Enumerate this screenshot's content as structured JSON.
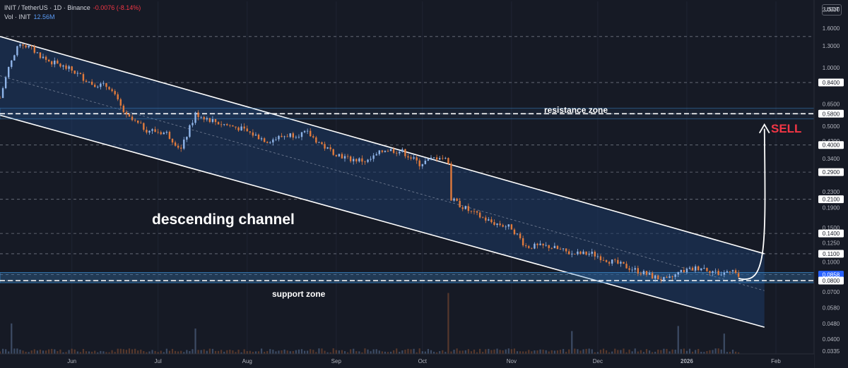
{
  "legend": {
    "symbol": "INIT / TetherUS · 1D · Binance",
    "change": "-0.0076 (-8.14%)",
    "vol_label": "Vol · INIT",
    "vol_value": "12.56M"
  },
  "currency": "USDT",
  "annotations": {
    "resistance": "resistance zone",
    "support": "support zone",
    "channel": "descending channel",
    "signal": "SELL"
  },
  "colors": {
    "background": "#161a25",
    "up": "#8fb4e8",
    "down": "#e07a3c",
    "channel_fill": "#1d3a66",
    "zone": "#3a86c8",
    "signal": "#f23645"
  },
  "chart_data": {
    "type": "candlestick",
    "title": "INIT / TetherUS · 1D · Binance",
    "x_start": "2025-05-07",
    "x_end": "2026-02-01",
    "y_scale": "log",
    "ylim": [
      0.0335,
      2.2
    ],
    "y_ticks": [
      2.0,
      1.6,
      1.3,
      1.0,
      0.84,
      0.65,
      0.58,
      0.5,
      0.42,
      0.4,
      0.34,
      0.29,
      0.23,
      0.21,
      0.19,
      0.15,
      0.14,
      0.125,
      0.11,
      0.1,
      0.0858,
      0.08,
      0.07,
      0.058,
      0.048,
      0.04,
      0.0335
    ],
    "x_ticks": [
      {
        "date": "2025-06-01",
        "label": "Jun"
      },
      {
        "date": "2025-07-01",
        "label": "Jul"
      },
      {
        "date": "2025-08-01",
        "label": "Aug"
      },
      {
        "date": "2025-09-01",
        "label": "Sep"
      },
      {
        "date": "2025-10-01",
        "label": "Oct"
      },
      {
        "date": "2025-11-01",
        "label": "Nov"
      },
      {
        "date": "2025-12-01",
        "label": "Dec"
      },
      {
        "date": "2026-01-01",
        "label": "2026"
      },
      {
        "date": "2026-02-01",
        "label": "Feb"
      }
    ],
    "horizontal_levels": [
      1.45,
      0.84,
      0.58,
      0.4,
      0.29,
      0.21,
      0.14,
      0.11,
      0.0858,
      0.08
    ],
    "highlighted_levels": [
      {
        "value": 0.58,
        "label": "0.5800",
        "style": "white"
      },
      {
        "value": 0.0858,
        "label": "0.0858",
        "style": "blue"
      },
      {
        "value": 0.08,
        "label": "0.0800",
        "style": "white"
      }
    ],
    "channel": {
      "upper": [
        {
          "date": "2025-05-07",
          "value": 1.45
        },
        {
          "date": "2026-01-28",
          "value": 0.11
        }
      ],
      "lower": [
        {
          "date": "2025-05-07",
          "value": 0.57
        },
        {
          "date": "2026-01-28",
          "value": 0.046
        }
      ],
      "median": [
        {
          "date": "2025-05-07",
          "value": 0.91
        },
        {
          "date": "2026-01-28",
          "value": 0.071
        }
      ]
    },
    "zones": [
      {
        "name": "resistance zone",
        "from": 0.545,
        "to": 0.62
      },
      {
        "name": "support zone",
        "from": 0.078,
        "to": 0.088
      }
    ],
    "forecast_arrow": {
      "from": {
        "date": "2026-01-19",
        "value": 0.082
      },
      "to": {
        "date": "2026-01-28",
        "value": 0.51
      }
    },
    "path_points": [
      {
        "date": "2025-05-07",
        "value": 0.7
      },
      {
        "date": "2025-05-10",
        "value": 1.0
      },
      {
        "date": "2025-05-14",
        "value": 1.35
      },
      {
        "date": "2025-05-18",
        "value": 1.25
      },
      {
        "date": "2025-05-23",
        "value": 1.1
      },
      {
        "date": "2025-06-01",
        "value": 0.97
      },
      {
        "date": "2025-06-08",
        "value": 0.83
      },
      {
        "date": "2025-06-14",
        "value": 0.8
      },
      {
        "date": "2025-06-20",
        "value": 0.56
      },
      {
        "date": "2025-06-27",
        "value": 0.48
      },
      {
        "date": "2025-07-04",
        "value": 0.46
      },
      {
        "date": "2025-07-09",
        "value": 0.38
      },
      {
        "date": "2025-07-14",
        "value": 0.58
      },
      {
        "date": "2025-07-22",
        "value": 0.52
      },
      {
        "date": "2025-07-29",
        "value": 0.49
      },
      {
        "date": "2025-08-08",
        "value": 0.42
      },
      {
        "date": "2025-08-15",
        "value": 0.45
      },
      {
        "date": "2025-08-22",
        "value": 0.46
      },
      {
        "date": "2025-08-29",
        "value": 0.38
      },
      {
        "date": "2025-09-05",
        "value": 0.34
      },
      {
        "date": "2025-09-12",
        "value": 0.33
      },
      {
        "date": "2025-09-18",
        "value": 0.38
      },
      {
        "date": "2025-09-24",
        "value": 0.37
      },
      {
        "date": "2025-09-30",
        "value": 0.32
      },
      {
        "date": "2025-10-07",
        "value": 0.35
      },
      {
        "date": "2025-10-10",
        "value": 0.33
      },
      {
        "date": "2025-10-11",
        "value": 0.21
      },
      {
        "date": "2025-10-18",
        "value": 0.18
      },
      {
        "date": "2025-10-25",
        "value": 0.16
      },
      {
        "date": "2025-11-01",
        "value": 0.15
      },
      {
        "date": "2025-11-06",
        "value": 0.12
      },
      {
        "date": "2025-11-14",
        "value": 0.12
      },
      {
        "date": "2025-11-22",
        "value": 0.11
      },
      {
        "date": "2025-11-29",
        "value": 0.11
      },
      {
        "date": "2025-12-06",
        "value": 0.1
      },
      {
        "date": "2025-12-13",
        "value": 0.092
      },
      {
        "date": "2025-12-20",
        "value": 0.084
      },
      {
        "date": "2025-12-25",
        "value": 0.08
      },
      {
        "date": "2025-12-30",
        "value": 0.089
      },
      {
        "date": "2026-01-06",
        "value": 0.094
      },
      {
        "date": "2026-01-13",
        "value": 0.086
      },
      {
        "date": "2026-01-17",
        "value": 0.093
      },
      {
        "date": "2026-01-19",
        "value": 0.082
      }
    ],
    "volume_spikes": [
      {
        "date": "2025-05-11",
        "value": 12
      },
      {
        "date": "2025-07-14",
        "value": 10
      },
      {
        "date": "2025-10-10",
        "value": 24
      },
      {
        "date": "2025-11-22",
        "value": 9
      },
      {
        "date": "2025-12-29",
        "value": 11
      },
      {
        "date": "2026-01-14",
        "value": 8
      }
    ]
  }
}
